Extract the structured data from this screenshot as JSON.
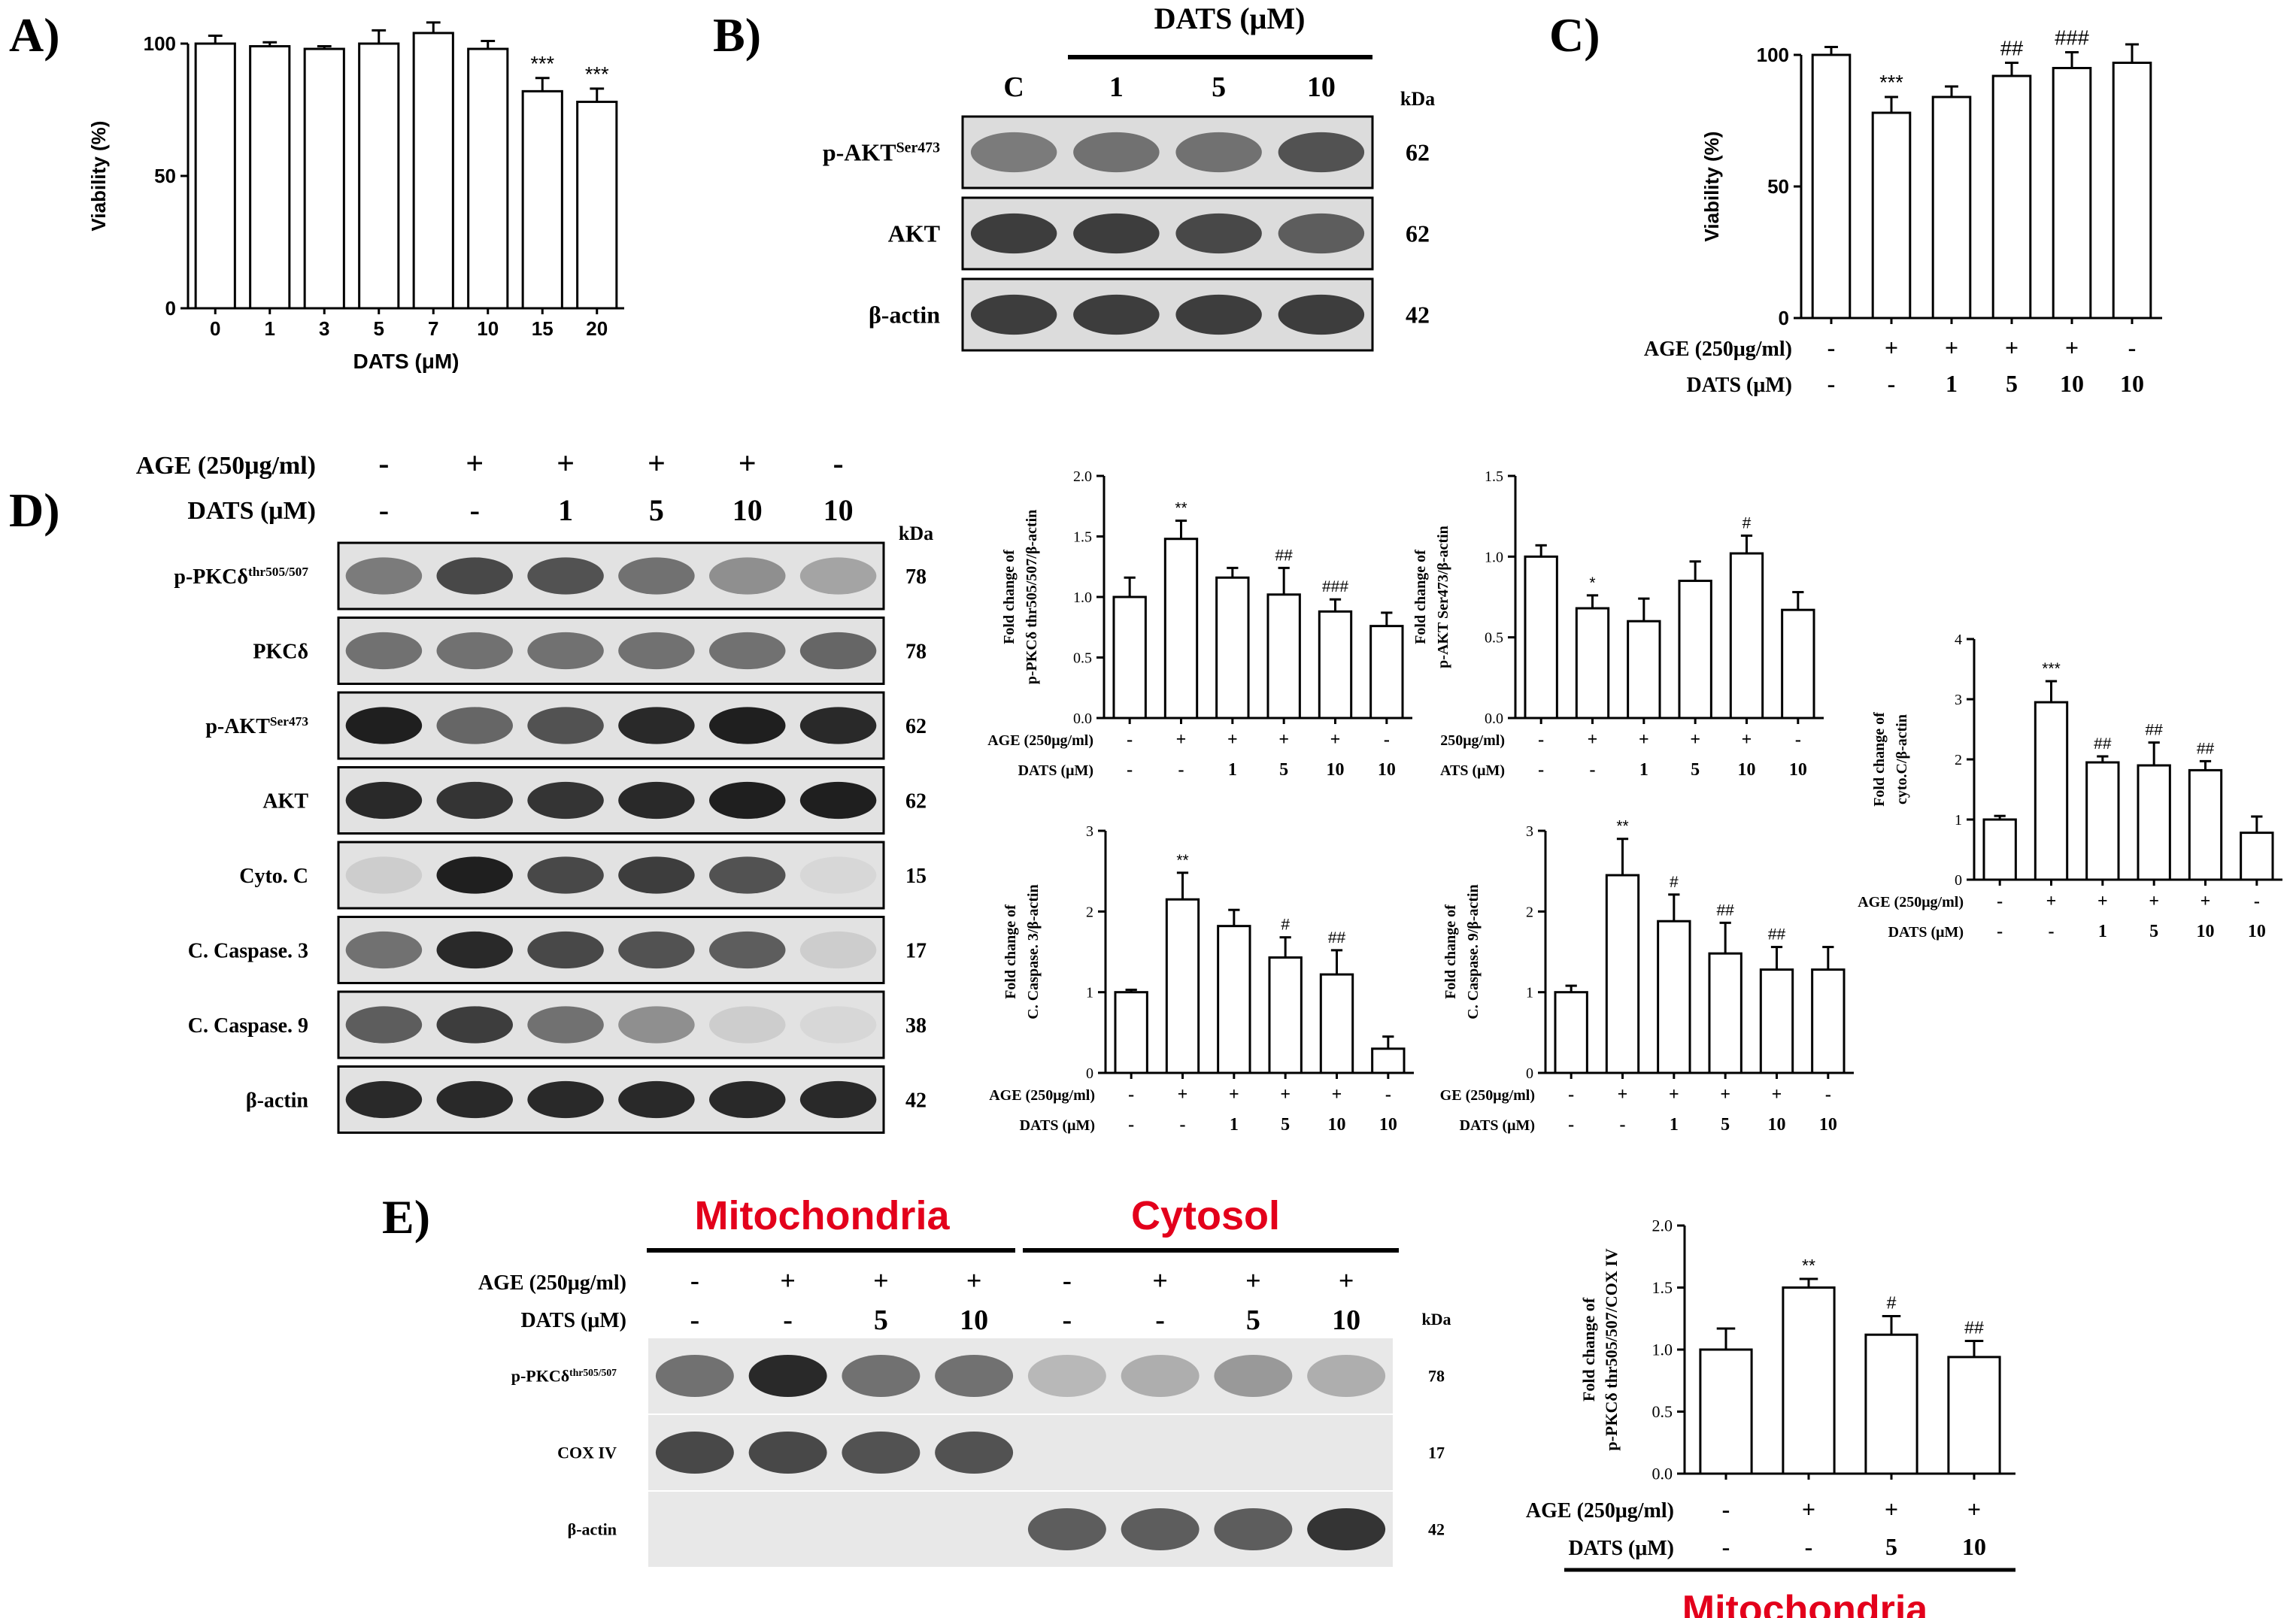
{
  "panels": {
    "A": "A)",
    "B": "B)",
    "C": "C)",
    "D": "D)",
    "E": "E)"
  },
  "colors": {
    "bar_fill": "#ffffff",
    "stroke": "#000000",
    "accent_red": "#e3001b"
  },
  "common": {
    "kda": "kDa",
    "age_label": "AGE (250μg/ml)",
    "age_label_clipped": "250μg/ml)",
    "age_label_clipped2": "GE (250μg/ml)",
    "dats_label": "DATS (μM)",
    "dats_label_clipped": "ATS (μM)"
  },
  "blots": {
    "B": {
      "header": "DATS (μM)",
      "lanes": [
        "C",
        "1",
        "5",
        "10"
      ],
      "rows": [
        {
          "label": "p-AKT",
          "sup": "Ser473",
          "kda": "62",
          "intensity": [
            0.55,
            0.6,
            0.6,
            0.75
          ]
        },
        {
          "label": "AKT",
          "sup": "",
          "kda": "62",
          "intensity": [
            0.85,
            0.85,
            0.8,
            0.7
          ]
        },
        {
          "label": "β-actin",
          "sup": "",
          "kda": "42",
          "intensity": [
            0.85,
            0.85,
            0.85,
            0.85
          ]
        }
      ]
    },
    "D": {
      "age": [
        "-",
        "+",
        "+",
        "+",
        "+",
        "-"
      ],
      "dats": [
        "-",
        "-",
        "1",
        "5",
        "10",
        "10"
      ],
      "rows": [
        {
          "label": "p-PKCδ",
          "sup": "thr505/507",
          "kda": "78",
          "intensity": [
            0.55,
            0.8,
            0.75,
            0.6,
            0.45,
            0.35
          ]
        },
        {
          "label": "PKCδ",
          "sup": "",
          "kda": "78",
          "intensity": [
            0.6,
            0.6,
            0.6,
            0.6,
            0.6,
            0.65
          ]
        },
        {
          "label": "p-AKT",
          "sup": "Ser473",
          "kda": "62",
          "intensity": [
            1.0,
            0.65,
            0.75,
            0.95,
            1.0,
            0.95
          ]
        },
        {
          "label": "AKT",
          "sup": "",
          "kda": "62",
          "intensity": [
            0.95,
            0.9,
            0.9,
            0.95,
            1.0,
            1.0
          ]
        },
        {
          "label": "Cyto. C",
          "sup": "",
          "kda": "15",
          "intensity": [
            0.15,
            1.0,
            0.8,
            0.85,
            0.75,
            0.1
          ]
        },
        {
          "label": "C. Caspase. 3",
          "sup": "",
          "kda": "17",
          "intensity": [
            0.6,
            0.95,
            0.8,
            0.75,
            0.7,
            0.15
          ]
        },
        {
          "label": "C. Caspase. 9",
          "sup": "",
          "kda": "38",
          "intensity": [
            0.7,
            0.85,
            0.6,
            0.45,
            0.15,
            0.1
          ]
        },
        {
          "label": "β-actin",
          "sup": "",
          "kda": "42",
          "intensity": [
            0.95,
            0.95,
            0.95,
            0.95,
            0.95,
            0.95
          ]
        }
      ]
    },
    "E": {
      "group_mito": "Mitochondria",
      "group_cyto": "Cytosol",
      "age": [
        "-",
        "+",
        "+",
        "+",
        "-",
        "+",
        "+",
        "+"
      ],
      "dats": [
        "-",
        "-",
        "5",
        "10",
        "-",
        "-",
        "5",
        "10"
      ],
      "rows": [
        {
          "label": "p-PKCδ",
          "sup": "thr505/507",
          "kda": "78",
          "intensity": [
            0.6,
            0.95,
            0.6,
            0.6,
            0.25,
            0.3,
            0.4,
            0.3
          ]
        },
        {
          "label": "COX IV",
          "sup": "",
          "kda": "17",
          "intensity": [
            0.8,
            0.8,
            0.75,
            0.75,
            0.0,
            0.0,
            0.0,
            0.0
          ]
        },
        {
          "label": "β-actin",
          "sup": "",
          "kda": "42",
          "intensity": [
            0.0,
            0.0,
            0.0,
            0.0,
            0.7,
            0.7,
            0.7,
            0.9
          ]
        }
      ]
    }
  },
  "chart_data": [
    {
      "id": "A",
      "type": "bar",
      "categories": [
        "0",
        "1",
        "3",
        "5",
        "7",
        "10",
        "15",
        "20"
      ],
      "values": [
        100,
        99,
        98,
        100,
        104,
        98,
        82,
        78
      ],
      "errors": [
        3,
        1.5,
        1,
        5,
        4,
        3,
        5,
        5
      ],
      "annotations": [
        "",
        "",
        "",
        "",
        "",
        "",
        "***",
        "***"
      ],
      "ylabel": "Viability (%)",
      "xlabel": "DATS (μM)",
      "ylim": [
        0,
        100
      ],
      "yticks": [
        0,
        50,
        100
      ]
    },
    {
      "id": "C",
      "type": "bar",
      "values": [
        100,
        78,
        84,
        92,
        95,
        97
      ],
      "errors": [
        3,
        6,
        4,
        5,
        6,
        7
      ],
      "annotations": [
        "",
        "***",
        "",
        "##",
        "###",
        ""
      ],
      "ylabel": "Viability (%)",
      "ylim": [
        0,
        100
      ],
      "yticks": [
        0,
        50,
        100
      ],
      "age": [
        "-",
        "+",
        "+",
        "+",
        "+",
        "-"
      ],
      "dats": [
        "-",
        "-",
        "1",
        "5",
        "10",
        "10"
      ]
    },
    {
      "id": "D1",
      "type": "bar",
      "values": [
        1.0,
        1.48,
        1.16,
        1.02,
        0.88,
        0.76
      ],
      "errors": [
        0.16,
        0.15,
        0.08,
        0.22,
        0.1,
        0.11
      ],
      "annotations": [
        "",
        "**",
        "",
        "##",
        "###",
        ""
      ],
      "ylabel1": "Fold change of",
      "ylabel2": "p-PKCδ thr505/507/β-actin",
      "ylim": [
        0,
        2.0
      ],
      "yticks": [
        0.0,
        0.5,
        1.0,
        1.5,
        2.0
      ],
      "age": [
        "-",
        "+",
        "+",
        "+",
        "+",
        "-"
      ],
      "dats": [
        "-",
        "-",
        "1",
        "5",
        "10",
        "10"
      ]
    },
    {
      "id": "D2",
      "type": "bar",
      "values": [
        1.0,
        0.68,
        0.6,
        0.85,
        1.02,
        0.67
      ],
      "errors": [
        0.07,
        0.08,
        0.14,
        0.12,
        0.11,
        0.11
      ],
      "annotations": [
        "",
        "*",
        "",
        "",
        "#",
        ""
      ],
      "ylabel1": "Fold change of",
      "ylabel2": "p-AKT Ser473/β-actin",
      "ylim": [
        0,
        1.5
      ],
      "yticks": [
        0.0,
        0.5,
        1.0,
        1.5
      ],
      "age": [
        "-",
        "+",
        "+",
        "+",
        "+",
        "-"
      ],
      "dats": [
        "-",
        "-",
        "1",
        "5",
        "10",
        "10"
      ]
    },
    {
      "id": "D3",
      "type": "bar",
      "values": [
        1.0,
        2.95,
        1.95,
        1.9,
        1.82,
        0.78
      ],
      "errors": [
        0.06,
        0.35,
        0.1,
        0.38,
        0.15,
        0.27
      ],
      "annotations": [
        "",
        "***",
        "##",
        "##",
        "##",
        ""
      ],
      "ylabel1": "Fold change of",
      "ylabel2": "cyto.C/β-actin",
      "ylim": [
        0,
        4
      ],
      "yticks": [
        0,
        1,
        2,
        3,
        4
      ],
      "age": [
        "-",
        "+",
        "+",
        "+",
        "+",
        "-"
      ],
      "dats": [
        "-",
        "-",
        "1",
        "5",
        "10",
        "10"
      ]
    },
    {
      "id": "D4",
      "type": "bar",
      "values": [
        1.0,
        2.15,
        1.82,
        1.43,
        1.22,
        0.3
      ],
      "errors": [
        0.03,
        0.33,
        0.2,
        0.25,
        0.3,
        0.15
      ],
      "annotations": [
        "",
        "**",
        "",
        "#",
        "##",
        ""
      ],
      "ylabel1": "Fold change of",
      "ylabel2": "C. Caspase. 3/β-actin",
      "ylim": [
        0,
        3
      ],
      "yticks": [
        0,
        1,
        2,
        3
      ],
      "age": [
        "-",
        "+",
        "+",
        "+",
        "+",
        "-"
      ],
      "dats": [
        "-",
        "-",
        "1",
        "5",
        "10",
        "10"
      ]
    },
    {
      "id": "D5",
      "type": "bar",
      "values": [
        1.0,
        2.45,
        1.88,
        1.48,
        1.28,
        1.28
      ],
      "errors": [
        0.08,
        0.45,
        0.33,
        0.38,
        0.28,
        0.28
      ],
      "annotations": [
        "",
        "**",
        "#",
        "##",
        "##",
        ""
      ],
      "ylabel1": "Fold change of",
      "ylabel2": "C. Caspase. 9/β-actin",
      "ylim": [
        0,
        3
      ],
      "yticks": [
        0,
        1,
        2,
        3
      ],
      "age": [
        "-",
        "+",
        "+",
        "+",
        "+",
        "-"
      ],
      "dats": [
        "-",
        "-",
        "1",
        "5",
        "10",
        "10"
      ]
    },
    {
      "id": "E1",
      "type": "bar",
      "values": [
        1.0,
        1.5,
        1.12,
        0.94
      ],
      "errors": [
        0.17,
        0.07,
        0.15,
        0.13
      ],
      "annotations": [
        "",
        "**",
        "#",
        "##"
      ],
      "ylabel1": "Fold change of",
      "ylabel2": "p-PKCδ thr505/507/COX IV",
      "ylim": [
        0,
        2.0
      ],
      "yticks": [
        0.0,
        0.5,
        1.0,
        1.5,
        2.0
      ],
      "age": [
        "-",
        "+",
        "+",
        "+"
      ],
      "dats": [
        "-",
        "-",
        "5",
        "10"
      ],
      "footer": "Mitochondria"
    }
  ]
}
